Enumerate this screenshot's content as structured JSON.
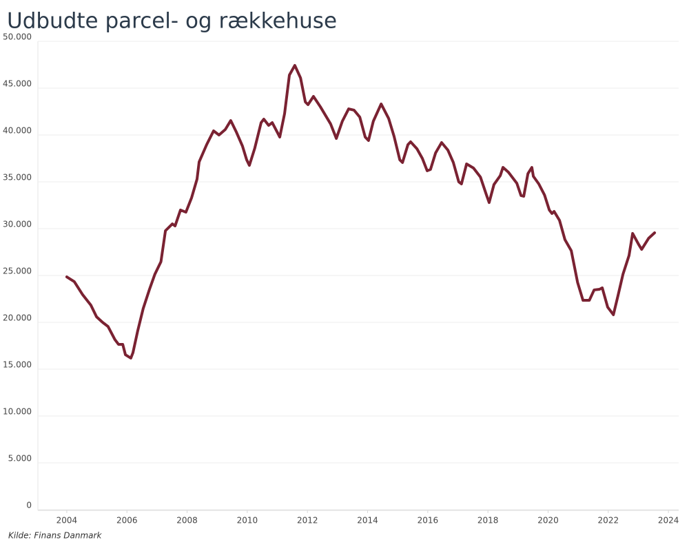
{
  "chart_data": {
    "type": "line",
    "title": "Udbudte parcel- og rækkehuse",
    "source": "Kilde: Finans Danmark",
    "color": "#7a2232",
    "grid": true,
    "xlim": [
      2003.04,
      2024.34
    ],
    "xticks": [
      2004,
      2006,
      2008,
      2010,
      2012,
      2014,
      2016,
      2018,
      2020,
      2022,
      2024
    ],
    "ylim": [
      0,
      50000
    ],
    "yticks": [
      0,
      {
        "value": 5000,
        "label": "5.000"
      },
      {
        "value": 10000,
        "label": "10.000"
      },
      {
        "value": 15000,
        "label": "15.000"
      },
      {
        "value": 20000,
        "label": "20.000"
      },
      {
        "value": 25000,
        "label": "25.000"
      },
      {
        "value": 30000,
        "label": "30.000"
      },
      {
        "value": 35000,
        "label": "35.000"
      },
      {
        "value": 40000,
        "label": "40.000"
      },
      {
        "value": 45000,
        "label": "45.000"
      },
      {
        "value": 50000,
        "label": "50.000"
      }
    ],
    "x": [
      2004.0,
      2004.25,
      2004.53,
      2004.8,
      2004.99,
      2005.19,
      2005.37,
      2005.6,
      2005.72,
      2005.86,
      2005.95,
      2006.13,
      2006.2,
      2006.36,
      2006.54,
      2006.75,
      2006.93,
      2007.13,
      2007.28,
      2007.51,
      2007.6,
      2007.78,
      2007.96,
      2008.15,
      2008.33,
      2008.4,
      2008.65,
      2008.88,
      2009.06,
      2009.27,
      2009.45,
      2009.64,
      2009.84,
      2009.98,
      2010.07,
      2010.25,
      2010.46,
      2010.55,
      2010.71,
      2010.83,
      2011.01,
      2011.08,
      2011.24,
      2011.4,
      2011.58,
      2011.77,
      2011.93,
      2012.02,
      2012.2,
      2012.43,
      2012.77,
      2012.96,
      2013.16,
      2013.37,
      2013.55,
      2013.74,
      2013.92,
      2014.03,
      2014.19,
      2014.45,
      2014.7,
      2014.88,
      2015.07,
      2015.16,
      2015.34,
      2015.43,
      2015.64,
      2015.82,
      2015.98,
      2016.09,
      2016.26,
      2016.46,
      2016.67,
      2016.85,
      2017.03,
      2017.12,
      2017.29,
      2017.52,
      2017.75,
      2017.95,
      2018.04,
      2018.2,
      2018.41,
      2018.5,
      2018.68,
      2018.96,
      2019.1,
      2019.19,
      2019.33,
      2019.46,
      2019.51,
      2019.69,
      2019.88,
      2020.04,
      2020.13,
      2020.2,
      2020.38,
      2020.56,
      2020.77,
      2020.98,
      2021.16,
      2021.37,
      2021.53,
      2021.71,
      2021.8,
      2021.98,
      2022.17,
      2022.33,
      2022.49,
      2022.69,
      2022.81,
      2023.01,
      2023.11,
      2023.34,
      2023.54
    ],
    "values": [
      24850,
      24340,
      22940,
      21840,
      20590,
      20000,
      19560,
      18160,
      17650,
      17650,
      16540,
      16180,
      16760,
      19120,
      21470,
      23530,
      25150,
      26470,
      29780,
      30510,
      30290,
      31990,
      31760,
      33310,
      35290,
      37130,
      38970,
      40440,
      40000,
      40590,
      41540,
      40290,
      38820,
      37350,
      36760,
      38600,
      41320,
      41690,
      41030,
      41320,
      40220,
      39780,
      42280,
      46400,
      47430,
      46100,
      43530,
      43240,
      44120,
      43010,
      41180,
      39630,
      41470,
      42790,
      42650,
      41910,
      39780,
      39410,
      41470,
      43310,
      41760,
      39850,
      37350,
      37060,
      38970,
      39270,
      38530,
      37500,
      36180,
      36320,
      38090,
      39190,
      38380,
      37060,
      35000,
      34780,
      36910,
      36470,
      35510,
      33600,
      32790,
      34710,
      35660,
      36540,
      36030,
      34850,
      33530,
      33460,
      35880,
      36540,
      35590,
      34780,
      33600,
      31990,
      31620,
      31840,
      30880,
      28820,
      27650,
      24260,
      22350,
      22350,
      23460,
      23530,
      23680,
      21620,
      20810,
      22940,
      25150,
      27130,
      29490,
      28310,
      27790,
      28970,
      29560
    ]
  }
}
